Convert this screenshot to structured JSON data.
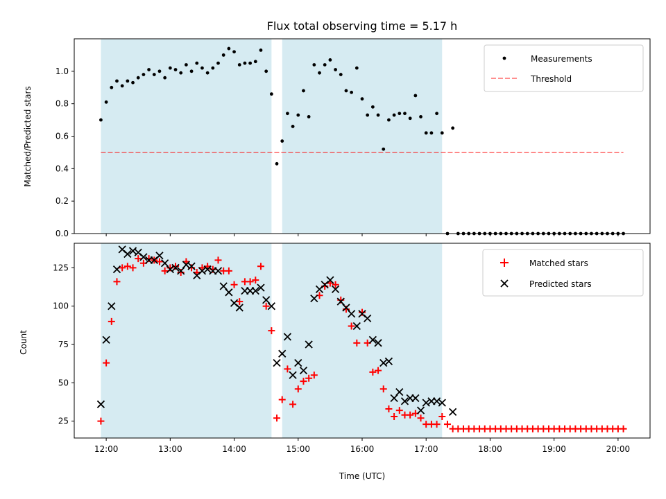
{
  "title": "Flux total observing time = 5.17 h",
  "colors": {
    "shade": "#add8e6",
    "threshold": "#ff0000",
    "matched": "#ff0000",
    "predicted": "#000000",
    "measure": "#000000"
  },
  "top": {
    "ylabel": "Matched/Predicted stars",
    "legend": {
      "measurements": "Measurements",
      "threshold": "Threshold"
    },
    "yticks": [
      "0.0",
      "0.2",
      "0.4",
      "0.6",
      "0.8",
      "1.0"
    ]
  },
  "bottom": {
    "ylabel": "Count",
    "xlabel": "Time (UTC)",
    "legend": {
      "matched": "Matched stars",
      "predicted": "Predicted stars"
    },
    "yticks": [
      "25",
      "50",
      "75",
      "100",
      "125"
    ],
    "xticks": [
      "12:00",
      "13:00",
      "14:00",
      "15:00",
      "16:00",
      "17:00",
      "18:00",
      "19:00",
      "20:00"
    ]
  },
  "chart_data": [
    {
      "type": "scatter",
      "panel": "top",
      "title": "Flux total observing time = 5.17 h",
      "ylabel": "Matched/Predicted stars",
      "xlim": [
        "11:30",
        "20:30"
      ],
      "ylim": [
        0,
        1.2
      ],
      "grid": false,
      "legend_position": "top-right",
      "shaded_intervals": [
        [
          "11:55",
          "14:35"
        ],
        [
          "14:45",
          "17:15"
        ]
      ],
      "threshold": {
        "name": "Threshold",
        "y": 0.5,
        "x_range": [
          "11:55",
          "20:05"
        ],
        "style": "dashed"
      },
      "series": [
        {
          "name": "Measurements",
          "x": [
            "11:55",
            "12:00",
            "12:05",
            "12:10",
            "12:15",
            "12:20",
            "12:25",
            "12:30",
            "12:35",
            "12:40",
            "12:45",
            "12:50",
            "12:55",
            "13:00",
            "13:05",
            "13:10",
            "13:15",
            "13:20",
            "13:25",
            "13:30",
            "13:35",
            "13:40",
            "13:45",
            "13:50",
            "13:55",
            "14:00",
            "14:05",
            "14:10",
            "14:15",
            "14:20",
            "14:25",
            "14:30",
            "14:35",
            "14:40",
            "14:45",
            "14:50",
            "14:55",
            "15:00",
            "15:05",
            "15:10",
            "15:15",
            "15:20",
            "15:25",
            "15:30",
            "15:35",
            "15:40",
            "15:45",
            "15:50",
            "15:55",
            "16:00",
            "16:05",
            "16:10",
            "16:15",
            "16:20",
            "16:25",
            "16:30",
            "16:35",
            "16:40",
            "16:45",
            "16:50",
            "16:55",
            "17:00",
            "17:05",
            "17:10",
            "17:15",
            "17:20",
            "17:25",
            "17:30",
            "17:35",
            "17:40",
            "17:45",
            "17:50",
            "17:55",
            "18:00",
            "18:05",
            "18:10",
            "18:15",
            "18:20",
            "18:25",
            "18:30",
            "18:35",
            "18:40",
            "18:45",
            "18:50",
            "18:55",
            "19:00",
            "19:05",
            "19:10",
            "19:15",
            "19:20",
            "19:25",
            "19:30",
            "19:35",
            "19:40",
            "19:45",
            "19:50",
            "19:55",
            "20:00",
            "20:05"
          ],
          "y": [
            0.7,
            0.81,
            0.9,
            0.94,
            0.91,
            0.94,
            0.93,
            0.96,
            0.98,
            1.01,
            0.98,
            1.0,
            0.96,
            1.02,
            1.01,
            0.99,
            1.04,
            1.0,
            1.05,
            1.02,
            0.99,
            1.02,
            1.05,
            1.1,
            1.14,
            1.12,
            1.04,
            1.05,
            1.05,
            1.06,
            1.13,
            1.0,
            0.86,
            0.43,
            0.57,
            0.74,
            0.66,
            0.73,
            0.88,
            0.72,
            1.04,
            0.99,
            1.04,
            1.07,
            1.01,
            0.98,
            0.88,
            0.87,
            1.02,
            0.83,
            0.73,
            0.78,
            0.73,
            0.52,
            0.7,
            0.73,
            0.74,
            0.74,
            0.71,
            0.85,
            0.72,
            0.62,
            0.62,
            0.74,
            0.62,
            0.0,
            0.65,
            0.0,
            0.0,
            0.0,
            0.0,
            0.0,
            0.0,
            0.0,
            0.0,
            0.0,
            0.0,
            0.0,
            0.0,
            0.0,
            0.0,
            0.0,
            0.0,
            0.0,
            0.0,
            0.0,
            0.0,
            0.0,
            0.0,
            0.0,
            0.0,
            0.0,
            0.0,
            0.0,
            0.0,
            0.0,
            0.0,
            0.0,
            0.0
          ]
        }
      ]
    },
    {
      "type": "scatter",
      "panel": "bottom",
      "xlabel": "Time (UTC)",
      "ylabel": "Count",
      "xlim": [
        "11:30",
        "20:30"
      ],
      "ylim": [
        14,
        141
      ],
      "grid": false,
      "legend_position": "top-right",
      "shaded_intervals": [
        [
          "11:55",
          "14:35"
        ],
        [
          "14:45",
          "17:15"
        ]
      ],
      "series": [
        {
          "name": "Matched stars",
          "marker": "plus",
          "x": [
            "11:55",
            "12:00",
            "12:05",
            "12:10",
            "12:15",
            "12:20",
            "12:25",
            "12:30",
            "12:35",
            "12:40",
            "12:45",
            "12:50",
            "12:55",
            "13:00",
            "13:05",
            "13:10",
            "13:15",
            "13:20",
            "13:25",
            "13:30",
            "13:35",
            "13:40",
            "13:45",
            "13:50",
            "13:55",
            "14:00",
            "14:05",
            "14:10",
            "14:15",
            "14:20",
            "14:25",
            "14:30",
            "14:35",
            "14:40",
            "14:45",
            "14:50",
            "14:55",
            "15:00",
            "15:05",
            "15:10",
            "15:15",
            "15:20",
            "15:25",
            "15:30",
            "15:35",
            "15:40",
            "15:45",
            "15:50",
            "15:55",
            "16:00",
            "16:05",
            "16:10",
            "16:15",
            "16:20",
            "16:25",
            "16:30",
            "16:35",
            "16:40",
            "16:45",
            "16:50",
            "16:55",
            "17:00",
            "17:05",
            "17:10",
            "17:15",
            "17:20",
            "17:25",
            "17:30",
            "17:35",
            "17:40",
            "17:45",
            "17:50",
            "17:55",
            "18:00",
            "18:05",
            "18:10",
            "18:15",
            "18:20",
            "18:25",
            "18:30",
            "18:35",
            "18:40",
            "18:45",
            "18:50",
            "18:55",
            "19:00",
            "19:05",
            "19:10",
            "19:15",
            "19:20",
            "19:25",
            "19:30",
            "19:35",
            "19:40",
            "19:45",
            "19:50",
            "19:55",
            "20:00",
            "20:05"
          ],
          "y": [
            25,
            63,
            90,
            116,
            125,
            126,
            125,
            131,
            128,
            131,
            130,
            129,
            123,
            125,
            126,
            122,
            129,
            125,
            122,
            125,
            126,
            124,
            130,
            123,
            123,
            114,
            103,
            116,
            116,
            117,
            126,
            100,
            84,
            27,
            39,
            59,
            36,
            46,
            51,
            53,
            55,
            107,
            113,
            115,
            114,
            104,
            98,
            87,
            76,
            96,
            76,
            57,
            58,
            46,
            33,
            28,
            32,
            29,
            29,
            30,
            27,
            23,
            23,
            23,
            28,
            23,
            20,
            20,
            20,
            20,
            20,
            20,
            20,
            20,
            20,
            20,
            20,
            20,
            20,
            20,
            20,
            20,
            20,
            20,
            20,
            20,
            20,
            20,
            20,
            20,
            20,
            20,
            20,
            20,
            20,
            20,
            20,
            20,
            20
          ]
        },
        {
          "name": "Predicted stars",
          "marker": "x",
          "x": [
            "11:55",
            "12:00",
            "12:05",
            "12:10",
            "12:15",
            "12:20",
            "12:25",
            "12:30",
            "12:35",
            "12:40",
            "12:45",
            "12:50",
            "12:55",
            "13:00",
            "13:05",
            "13:10",
            "13:15",
            "13:20",
            "13:25",
            "13:30",
            "13:35",
            "13:40",
            "13:45",
            "13:50",
            "13:55",
            "14:00",
            "14:05",
            "14:10",
            "14:15",
            "14:20",
            "14:25",
            "14:30",
            "14:35",
            "14:40",
            "14:45",
            "14:50",
            "14:55",
            "15:00",
            "15:05",
            "15:10",
            "15:15",
            "15:20",
            "15:25",
            "15:30",
            "15:35",
            "15:40",
            "15:45",
            "15:50",
            "15:55",
            "16:00",
            "16:05",
            "16:10",
            "16:15",
            "16:20",
            "16:25",
            "16:30",
            "16:35",
            "16:40",
            "16:45",
            "16:50",
            "16:55",
            "17:00",
            "17:05",
            "17:10",
            "17:15",
            "17:25"
          ],
          "y": [
            36,
            78,
            100,
            124,
            137,
            134,
            136,
            135,
            132,
            130,
            130,
            133,
            128,
            124,
            125,
            123,
            127,
            126,
            120,
            123,
            124,
            123,
            123,
            113,
            109,
            102,
            99,
            110,
            110,
            110,
            112,
            104,
            100,
            63,
            69,
            80,
            55,
            63,
            58,
            75,
            105,
            111,
            114,
            117,
            111,
            103,
            99,
            95,
            87,
            95,
            92,
            78,
            76,
            63,
            64,
            40,
            44,
            38,
            40,
            40,
            32,
            37,
            38,
            38,
            37,
            31
          ]
        }
      ]
    }
  ]
}
